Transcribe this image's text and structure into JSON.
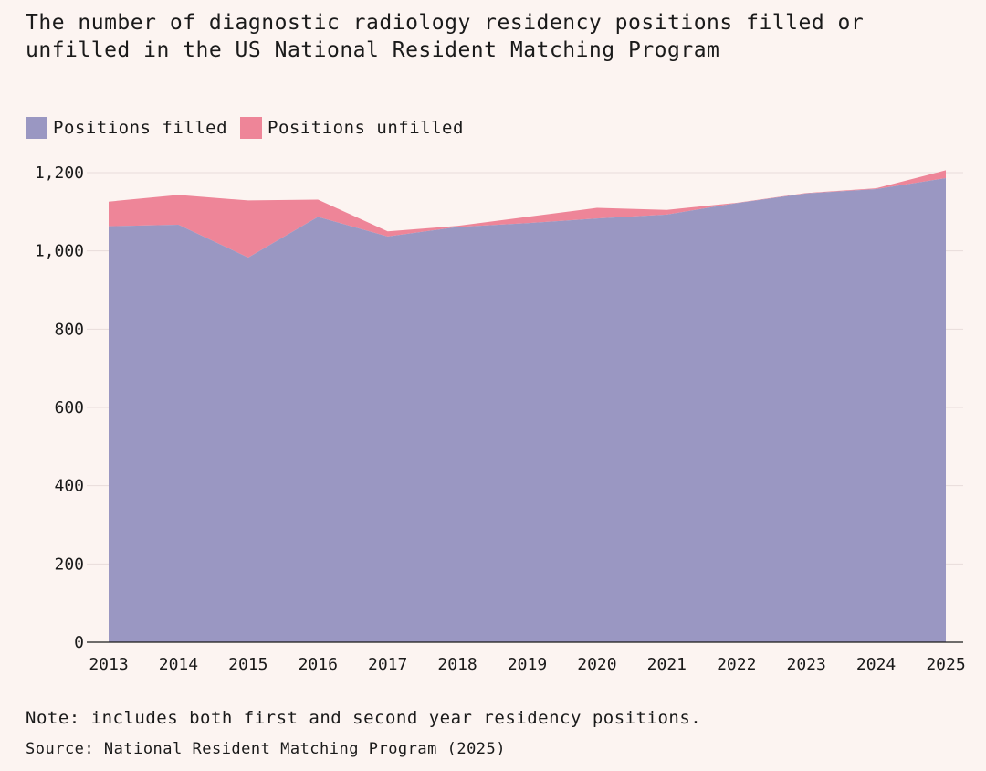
{
  "title": "The number of diagnostic radiology residency positions filled or\nunfilled in the US National Resident Matching Program",
  "legend": [
    {
      "label": "Positions filled",
      "color": "#9a97c2"
    },
    {
      "label": "Positions unfilled",
      "color": "#ee8598"
    }
  ],
  "note": "Note: includes both first and second year residency positions.",
  "source": "Source: National Resident Matching Program (2025)",
  "chart_data": {
    "type": "area",
    "stacked": true,
    "x": [
      "2013",
      "2014",
      "2015",
      "2016",
      "2017",
      "2018",
      "2019",
      "2020",
      "2021",
      "2022",
      "2023",
      "2024",
      "2025"
    ],
    "series": [
      {
        "name": "Positions filled",
        "color": "#9a97c2",
        "values": [
          1063,
          1067,
          983,
          1087,
          1037,
          1061,
          1071,
          1083,
          1093,
          1122,
          1147,
          1158,
          1186
        ]
      },
      {
        "name": "Positions unfilled",
        "color": "#ee8598",
        "values": [
          63,
          76,
          146,
          44,
          13,
          3,
          16,
          27,
          12,
          1,
          1,
          2,
          20
        ]
      }
    ],
    "yticks": [
      "0",
      "200",
      "400",
      "600",
      "800",
      "1,000",
      "1,200"
    ],
    "ytick_values": [
      0,
      200,
      400,
      600,
      800,
      1000,
      1200
    ],
    "ylim": [
      0,
      1200
    ],
    "grid": true,
    "legend_position": "top-left"
  }
}
